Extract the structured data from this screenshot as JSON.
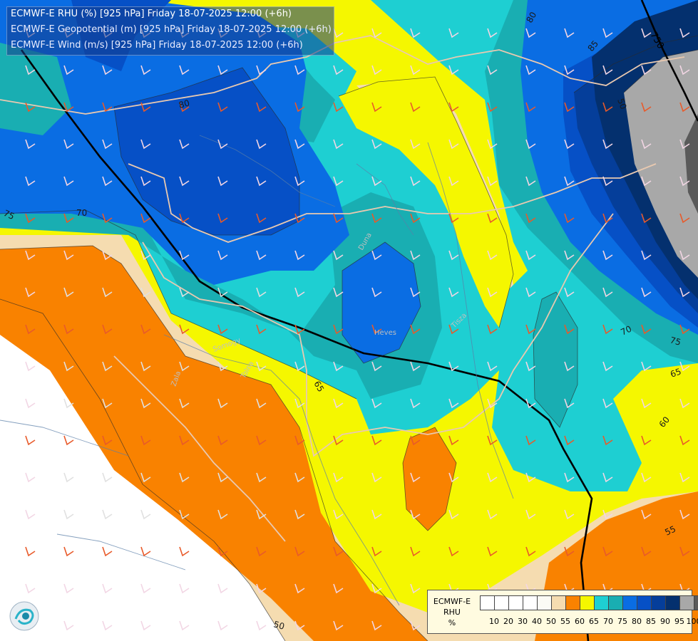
{
  "header": {
    "line1": "ECMWF-E RHU (%) [925 hPa] Friday 18-07-2025 12:00 (+6h)",
    "line2": "ECMWF-E Geopotential (m) [925 hPa] Friday 18-07-2025 12:00 (+6h)",
    "line3": "ECMWF-E Wind (m/s) [925 hPa] Friday 18-07-2025 12:00 (+6h)"
  },
  "legend": {
    "model": "ECMWF-E",
    "variable": "RHU",
    "unit": "%",
    "levels": [
      {
        "label": "10",
        "color": "#ffffff"
      },
      {
        "label": "20",
        "color": "#ffffff"
      },
      {
        "label": "30",
        "color": "#ffffff"
      },
      {
        "label": "40",
        "color": "#ffffff"
      },
      {
        "label": "50",
        "color": "#fbfbf5"
      },
      {
        "label": "55",
        "color": "#f5dcb0"
      },
      {
        "label": "60",
        "color": "#f98200"
      },
      {
        "label": "65",
        "color": "#f5f700"
      },
      {
        "label": "70",
        "color": "#1ecfd2"
      },
      {
        "label": "75",
        "color": "#19aeb2"
      },
      {
        "label": "80",
        "color": "#0a6de3"
      },
      {
        "label": "85",
        "color": "#0650c6"
      },
      {
        "label": "90",
        "color": "#053e9a"
      },
      {
        "label": "95",
        "color": "#04306e"
      },
      {
        "label": "100",
        "color": "#a8a8a8"
      },
      {
        "label": "",
        "color": "#5a5a5a"
      }
    ]
  },
  "contour_labels": [
    {
      "text": "80",
      "key": "c80a"
    },
    {
      "text": "70",
      "key": "c70a"
    },
    {
      "text": "75",
      "key": "c75a"
    },
    {
      "text": "65",
      "key": "c65a"
    },
    {
      "text": "50",
      "key": "c50a"
    },
    {
      "text": "70",
      "key": "c70b"
    },
    {
      "text": "75",
      "key": "c75b"
    },
    {
      "text": "65",
      "key": "c65b"
    },
    {
      "text": "60",
      "key": "c60a"
    },
    {
      "text": "55",
      "key": "c55a"
    },
    {
      "text": "80",
      "key": "c80b"
    },
    {
      "text": "85",
      "key": "c85a"
    },
    {
      "text": "50",
      "key": "c50b"
    },
    {
      "text": "750",
      "key": "c750"
    }
  ],
  "place_labels": [
    "Zala",
    "Somogy",
    "Tolna",
    "Tisza",
    "Duna",
    "Heves"
  ]
}
